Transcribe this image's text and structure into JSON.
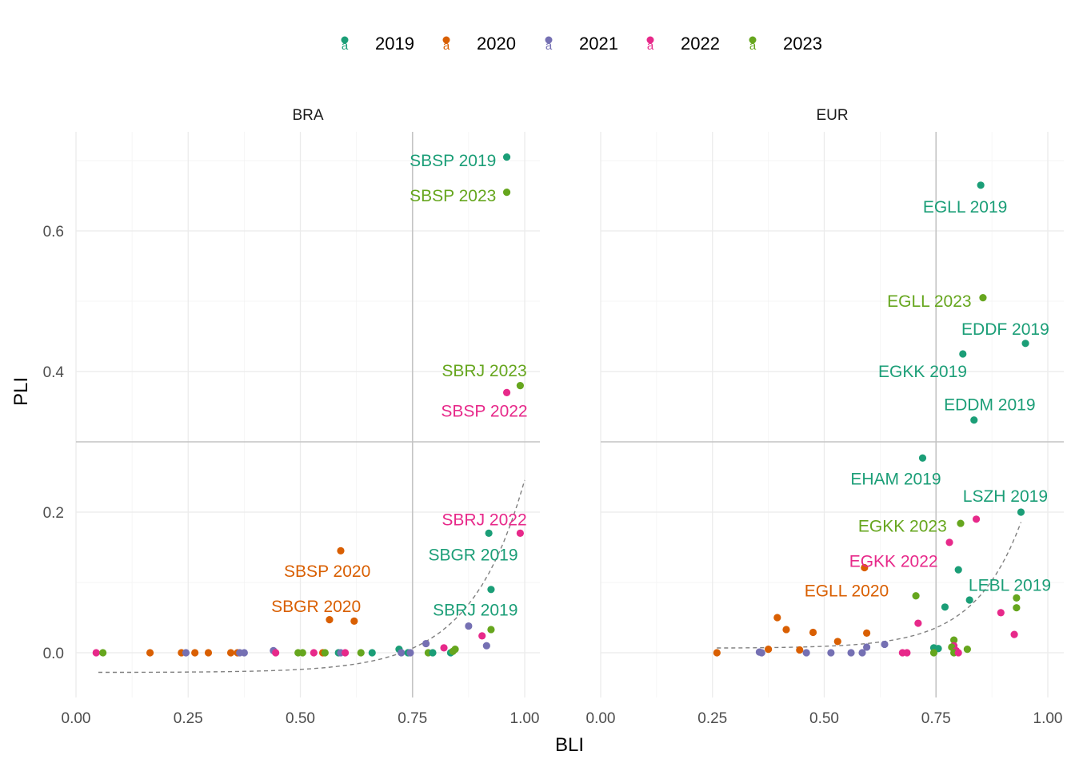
{
  "chart_data": {
    "type": "scatter",
    "xlabel": "BLI",
    "ylabel": "PLI",
    "xlim": [
      0,
      1
    ],
    "ylim": [
      -0.06,
      0.72
    ],
    "x_ticks": [
      "0.00",
      "0.25",
      "0.50",
      "0.75",
      "1.00"
    ],
    "y_ticks": [
      "0.0",
      "0.2",
      "0.4",
      "0.6"
    ],
    "reference_lines": {
      "x": 0.75,
      "y": 0.3
    },
    "grid": true,
    "legend_position": "top",
    "colors": {
      "2019": "#1b9e77",
      "2020": "#d95f02",
      "2021": "#7570b3",
      "2022": "#e7298a",
      "2023": "#66a61e"
    },
    "legend": [
      {
        "name": "2019",
        "color": "#1b9e77"
      },
      {
        "name": "2020",
        "color": "#d95f02"
      },
      {
        "name": "2021",
        "color": "#7570b3"
      },
      {
        "name": "2022",
        "color": "#e7298a"
      },
      {
        "name": "2023",
        "color": "#66a61e"
      }
    ],
    "panels": [
      {
        "title": "BRA",
        "points": [
          {
            "year": "2019",
            "x": 0.96,
            "y": 0.705
          },
          {
            "year": "2023",
            "x": 0.96,
            "y": 0.655
          },
          {
            "year": "2023",
            "x": 0.99,
            "y": 0.38
          },
          {
            "year": "2022",
            "x": 0.96,
            "y": 0.37
          },
          {
            "year": "2022",
            "x": 0.99,
            "y": 0.17
          },
          {
            "year": "2019",
            "x": 0.92,
            "y": 0.17
          },
          {
            "year": "2020",
            "x": 0.59,
            "y": 0.145
          },
          {
            "year": "2019",
            "x": 0.925,
            "y": 0.09
          },
          {
            "year": "2020",
            "x": 0.565,
            "y": 0.047
          },
          {
            "year": "2020",
            "x": 0.62,
            "y": 0.045
          },
          {
            "year": "2021",
            "x": 0.875,
            "y": 0.038
          },
          {
            "year": "2023",
            "x": 0.925,
            "y": 0.033
          },
          {
            "year": "2022",
            "x": 0.905,
            "y": 0.024
          },
          {
            "year": "2021",
            "x": 0.78,
            "y": 0.013
          },
          {
            "year": "2021",
            "x": 0.915,
            "y": 0.01
          },
          {
            "year": "2022",
            "x": 0.82,
            "y": 0.007
          },
          {
            "year": "2019",
            "x": 0.72,
            "y": 0.005
          },
          {
            "year": "2023",
            "x": 0.845,
            "y": 0.005
          },
          {
            "year": "2021",
            "x": 0.44,
            "y": 0.003
          },
          {
            "year": "2022",
            "x": 0.045,
            "y": 0.0
          },
          {
            "year": "2023",
            "x": 0.06,
            "y": 0.0
          },
          {
            "year": "2020",
            "x": 0.165,
            "y": 0.0
          },
          {
            "year": "2020",
            "x": 0.235,
            "y": 0.0
          },
          {
            "year": "2021",
            "x": 0.245,
            "y": 0.0
          },
          {
            "year": "2020",
            "x": 0.265,
            "y": 0.0
          },
          {
            "year": "2020",
            "x": 0.295,
            "y": 0.0
          },
          {
            "year": "2020",
            "x": 0.345,
            "y": 0.0
          },
          {
            "year": "2020",
            "x": 0.36,
            "y": 0.0
          },
          {
            "year": "2021",
            "x": 0.365,
            "y": 0.0
          },
          {
            "year": "2021",
            "x": 0.375,
            "y": 0.0
          },
          {
            "year": "2022",
            "x": 0.445,
            "y": 0.0
          },
          {
            "year": "2023",
            "x": 0.495,
            "y": 0.0
          },
          {
            "year": "2023",
            "x": 0.505,
            "y": 0.0
          },
          {
            "year": "2022",
            "x": 0.53,
            "y": 0.0
          },
          {
            "year": "2020",
            "x": 0.55,
            "y": 0.0
          },
          {
            "year": "2023",
            "x": 0.555,
            "y": 0.0
          },
          {
            "year": "2019",
            "x": 0.585,
            "y": 0.0
          },
          {
            "year": "2021",
            "x": 0.59,
            "y": 0.0
          },
          {
            "year": "2022",
            "x": 0.6,
            "y": 0.0
          },
          {
            "year": "2023",
            "x": 0.635,
            "y": 0.0
          },
          {
            "year": "2019",
            "x": 0.66,
            "y": 0.0
          },
          {
            "year": "2021",
            "x": 0.725,
            "y": 0.0
          },
          {
            "year": "2019",
            "x": 0.74,
            "y": 0.0
          },
          {
            "year": "2021",
            "x": 0.745,
            "y": 0.0
          },
          {
            "year": "2023",
            "x": 0.785,
            "y": 0.0
          },
          {
            "year": "2019",
            "x": 0.795,
            "y": 0.0
          },
          {
            "year": "2019",
            "x": 0.835,
            "y": 0.0
          },
          {
            "year": "2023",
            "x": 0.84,
            "y": 0.002
          }
        ],
        "labels": [
          {
            "text": "SBSP 2019",
            "year": "2019",
            "x": 0.84,
            "y": 0.7,
            "anchor": "middle"
          },
          {
            "text": "SBSP 2023",
            "year": "2023",
            "x": 0.84,
            "y": 0.65,
            "anchor": "middle"
          },
          {
            "text": "SBRJ 2023",
            "year": "2023",
            "x": 0.91,
            "y": 0.401,
            "anchor": "middle"
          },
          {
            "text": "SBSP 2022",
            "year": "2022",
            "x": 0.91,
            "y": 0.344,
            "anchor": "middle"
          },
          {
            "text": "SBRJ 2022",
            "year": "2022",
            "x": 0.91,
            "y": 0.189,
            "anchor": "middle"
          },
          {
            "text": "SBGR 2019",
            "year": "2019",
            "x": 0.885,
            "y": 0.139,
            "anchor": "middle"
          },
          {
            "text": "SBSP 2020",
            "year": "2020",
            "x": 0.56,
            "y": 0.116,
            "anchor": "middle"
          },
          {
            "text": "SBGR 2020",
            "year": "2020",
            "x": 0.535,
            "y": 0.066,
            "anchor": "middle"
          },
          {
            "text": "SBRJ 2019",
            "year": "2019",
            "x": 0.89,
            "y": 0.061,
            "anchor": "middle"
          }
        ],
        "trend": {
          "a": -0.028,
          "b": 6.8e-05,
          "k": 8.3,
          "x0": 0.05,
          "x1": 1.0
        }
      },
      {
        "title": "EUR",
        "points": [
          {
            "year": "2019",
            "x": 0.85,
            "y": 0.665
          },
          {
            "year": "2023",
            "x": 0.855,
            "y": 0.505
          },
          {
            "year": "2019",
            "x": 0.95,
            "y": 0.44
          },
          {
            "year": "2019",
            "x": 0.81,
            "y": 0.425
          },
          {
            "year": "2019",
            "x": 0.835,
            "y": 0.331
          },
          {
            "year": "2019",
            "x": 0.72,
            "y": 0.277
          },
          {
            "year": "2019",
            "x": 0.94,
            "y": 0.2
          },
          {
            "year": "2022",
            "x": 0.84,
            "y": 0.19
          },
          {
            "year": "2023",
            "x": 0.805,
            "y": 0.184
          },
          {
            "year": "2022",
            "x": 0.78,
            "y": 0.157
          },
          {
            "year": "2020",
            "x": 0.59,
            "y": 0.121
          },
          {
            "year": "2019",
            "x": 0.8,
            "y": 0.118
          },
          {
            "year": "2023",
            "x": 0.705,
            "y": 0.081
          },
          {
            "year": "2023",
            "x": 0.93,
            "y": 0.078
          },
          {
            "year": "2019",
            "x": 0.825,
            "y": 0.075
          },
          {
            "year": "2019",
            "x": 0.77,
            "y": 0.065
          },
          {
            "year": "2023",
            "x": 0.93,
            "y": 0.064
          },
          {
            "year": "2022",
            "x": 0.895,
            "y": 0.057
          },
          {
            "year": "2020",
            "x": 0.395,
            "y": 0.05
          },
          {
            "year": "2022",
            "x": 0.71,
            "y": 0.042
          },
          {
            "year": "2020",
            "x": 0.415,
            "y": 0.033
          },
          {
            "year": "2020",
            "x": 0.475,
            "y": 0.029
          },
          {
            "year": "2020",
            "x": 0.595,
            "y": 0.028
          },
          {
            "year": "2022",
            "x": 0.925,
            "y": 0.026
          },
          {
            "year": "2023",
            "x": 0.79,
            "y": 0.018
          },
          {
            "year": "2020",
            "x": 0.53,
            "y": 0.016
          },
          {
            "year": "2021",
            "x": 0.635,
            "y": 0.012
          },
          {
            "year": "2022",
            "x": 0.79,
            "y": 0.01
          },
          {
            "year": "2023",
            "x": 0.785,
            "y": 0.008
          },
          {
            "year": "2021",
            "x": 0.595,
            "y": 0.008
          },
          {
            "year": "2019",
            "x": 0.745,
            "y": 0.007
          },
          {
            "year": "2019",
            "x": 0.755,
            "y": 0.006
          },
          {
            "year": "2020",
            "x": 0.375,
            "y": 0.005
          },
          {
            "year": "2023",
            "x": 0.82,
            "y": 0.005
          },
          {
            "year": "2020",
            "x": 0.445,
            "y": 0.004
          },
          {
            "year": "2022",
            "x": 0.795,
            "y": 0.003
          },
          {
            "year": "2021",
            "x": 0.355,
            "y": 0.001
          },
          {
            "year": "2020",
            "x": 0.26,
            "y": 0.0
          },
          {
            "year": "2021",
            "x": 0.36,
            "y": 0.0
          },
          {
            "year": "2021",
            "x": 0.46,
            "y": 0.0
          },
          {
            "year": "2021",
            "x": 0.515,
            "y": 0.0
          },
          {
            "year": "2021",
            "x": 0.56,
            "y": 0.0
          },
          {
            "year": "2021",
            "x": 0.585,
            "y": 0.0
          },
          {
            "year": "2022",
            "x": 0.675,
            "y": 0.0
          },
          {
            "year": "2022",
            "x": 0.685,
            "y": 0.0
          },
          {
            "year": "2023",
            "x": 0.745,
            "y": 0.0
          },
          {
            "year": "2023",
            "x": 0.79,
            "y": 0.0
          },
          {
            "year": "2022",
            "x": 0.8,
            "y": 0.0
          }
        ],
        "labels": [
          {
            "text": "EGLL 2019",
            "year": "2019",
            "x": 0.815,
            "y": 0.634,
            "anchor": "middle"
          },
          {
            "text": "EGLL 2023",
            "year": "2023",
            "x": 0.735,
            "y": 0.5,
            "anchor": "middle"
          },
          {
            "text": "EDDF 2019",
            "year": "2019",
            "x": 0.905,
            "y": 0.46,
            "anchor": "middle"
          },
          {
            "text": "EGKK 2019",
            "year": "2019",
            "x": 0.72,
            "y": 0.4,
            "anchor": "middle"
          },
          {
            "text": "EDDM 2019",
            "year": "2019",
            "x": 0.87,
            "y": 0.353,
            "anchor": "middle"
          },
          {
            "text": "EHAM 2019",
            "year": "2019",
            "x": 0.66,
            "y": 0.247,
            "anchor": "middle"
          },
          {
            "text": "LSZH 2019",
            "year": "2019",
            "x": 0.905,
            "y": 0.223,
            "anchor": "middle"
          },
          {
            "text": "EGKK 2023",
            "year": "2023",
            "x": 0.675,
            "y": 0.18,
            "anchor": "middle"
          },
          {
            "text": "EGKK 2022",
            "year": "2022",
            "x": 0.655,
            "y": 0.13,
            "anchor": "middle"
          },
          {
            "text": "LEBL 2019",
            "year": "2019",
            "x": 0.915,
            "y": 0.096,
            "anchor": "middle"
          },
          {
            "text": "EGLL 2020",
            "year": "2020",
            "x": 0.55,
            "y": 0.088,
            "anchor": "middle"
          }
        ],
        "trend": {
          "a": 0.0065,
          "b": 2.2e-05,
          "k": 9.58,
          "x0": 0.26,
          "x1": 0.94
        }
      }
    ]
  }
}
